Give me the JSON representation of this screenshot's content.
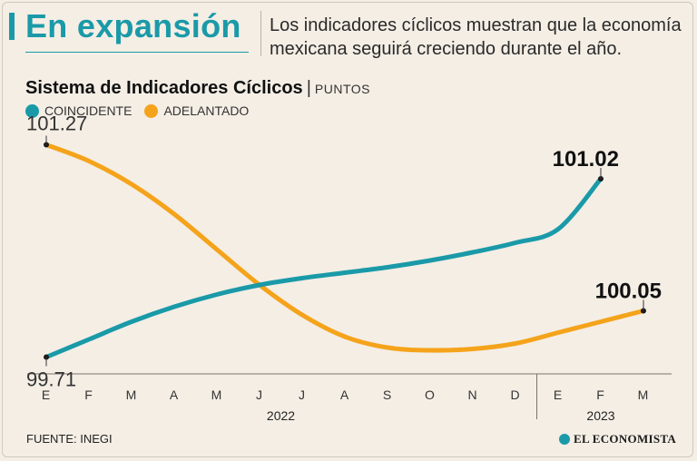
{
  "header": {
    "title": "En expansión",
    "subtitle": "Los indicadores cíclicos muestran que la economía mexicana seguirá creciendo durante el año."
  },
  "chart_data": {
    "type": "line",
    "title": "Sistema de Indicadores Cíclicos",
    "units": "PUNTOS",
    "categories": [
      "E",
      "F",
      "M",
      "A",
      "M",
      "J",
      "J",
      "A",
      "S",
      "O",
      "N",
      "D",
      "E",
      "F",
      "M"
    ],
    "years": [
      {
        "label": "2022",
        "from": 0,
        "to": 11
      },
      {
        "label": "2023",
        "from": 12,
        "to": 14
      }
    ],
    "ylim": [
      99.6,
      101.4
    ],
    "series": [
      {
        "name": "COINCIDENTE",
        "color": "#1a9aa8",
        "values": [
          99.71,
          99.84,
          99.97,
          100.08,
          100.17,
          100.24,
          100.29,
          100.33,
          100.37,
          100.42,
          100.48,
          100.55,
          100.65,
          101.02,
          null
        ],
        "start_label": "99.71",
        "end_label": "101.02"
      },
      {
        "name": "ADELANTADO",
        "color": "#f5a31a",
        "values": [
          101.27,
          101.15,
          100.98,
          100.76,
          100.5,
          100.24,
          100.02,
          99.86,
          99.78,
          99.76,
          99.77,
          99.81,
          99.89,
          99.97,
          100.05
        ],
        "start_label": "101.27",
        "end_label": "100.05"
      }
    ]
  },
  "footer": {
    "source": "FUENTE: INEGI",
    "brand": "EL ECONOMISTA"
  }
}
